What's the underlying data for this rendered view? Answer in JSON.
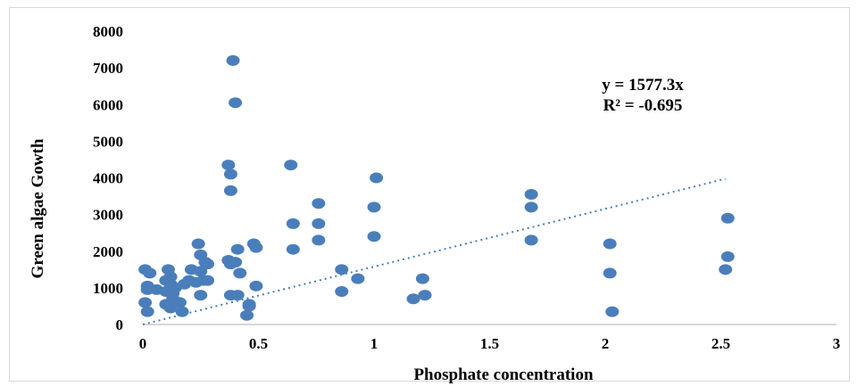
{
  "chart_data": {
    "type": "scatter",
    "xlabel": "Phosphate concentration",
    "ylabel": "Green algae Gowth",
    "xlim": [
      0,
      3
    ],
    "ylim": [
      0,
      8000
    ],
    "x_ticks": [
      "0",
      "0.5",
      "1",
      "1.5",
      "2",
      "2.5",
      "3"
    ],
    "y_ticks": [
      "0",
      "1000",
      "2000",
      "3000",
      "4000",
      "5000",
      "6000",
      "7000",
      "8000"
    ],
    "marker_color": "#4a7ebb",
    "trendline_color": "#4a7ebb",
    "grid": false,
    "annotations": [
      "y = 1577.3x",
      "R² = -0.695"
    ],
    "trendline": {
      "type": "linear",
      "slope": 1577.3,
      "intercept": 0,
      "x_range": [
        0,
        2.52
      ]
    },
    "points": [
      [
        0.01,
        1500
      ],
      [
        0.03,
        1400
      ],
      [
        0.02,
        1050
      ],
      [
        0.02,
        950
      ],
      [
        0.01,
        600
      ],
      [
        0.02,
        350
      ],
      [
        0.06,
        950
      ],
      [
        0.1,
        900
      ],
      [
        0.1,
        1200
      ],
      [
        0.11,
        1500
      ],
      [
        0.12,
        1300
      ],
      [
        0.12,
        1100
      ],
      [
        0.13,
        850
      ],
      [
        0.13,
        700
      ],
      [
        0.14,
        1000
      ],
      [
        0.1,
        550
      ],
      [
        0.12,
        450
      ],
      [
        0.16,
        600
      ],
      [
        0.17,
        350
      ],
      [
        0.18,
        1100
      ],
      [
        0.2,
        1200
      ],
      [
        0.21,
        1500
      ],
      [
        0.23,
        1150
      ],
      [
        0.24,
        2200
      ],
      [
        0.25,
        1900
      ],
      [
        0.25,
        1450
      ],
      [
        0.26,
        1200
      ],
      [
        0.25,
        800
      ],
      [
        0.27,
        1700
      ],
      [
        0.28,
        1650
      ],
      [
        0.28,
        1200
      ],
      [
        0.37,
        4350
      ],
      [
        0.38,
        4100
      ],
      [
        0.38,
        3650
      ],
      [
        0.39,
        7200
      ],
      [
        0.4,
        6050
      ],
      [
        0.37,
        1750
      ],
      [
        0.38,
        1650
      ],
      [
        0.4,
        1700
      ],
      [
        0.41,
        2050
      ],
      [
        0.42,
        1400
      ],
      [
        0.38,
        800
      ],
      [
        0.41,
        800
      ],
      [
        0.46,
        500
      ],
      [
        0.46,
        550
      ],
      [
        0.45,
        250
      ],
      [
        0.48,
        2200
      ],
      [
        0.49,
        2100
      ],
      [
        0.49,
        1050
      ],
      [
        0.64,
        4350
      ],
      [
        0.65,
        2750
      ],
      [
        0.65,
        2050
      ],
      [
        0.76,
        3300
      ],
      [
        0.76,
        2750
      ],
      [
        0.76,
        2300
      ],
      [
        0.86,
        1500
      ],
      [
        0.86,
        900
      ],
      [
        0.93,
        1250
      ],
      [
        1.01,
        4000
      ],
      [
        1.0,
        3200
      ],
      [
        1.0,
        2400
      ],
      [
        1.17,
        700
      ],
      [
        1.21,
        1250
      ],
      [
        1.22,
        800
      ],
      [
        1.68,
        3550
      ],
      [
        1.68,
        3200
      ],
      [
        1.68,
        2300
      ],
      [
        2.02,
        2200
      ],
      [
        2.02,
        1400
      ],
      [
        2.03,
        350
      ],
      [
        2.53,
        2900
      ],
      [
        2.53,
        1850
      ],
      [
        2.52,
        1500
      ]
    ]
  }
}
